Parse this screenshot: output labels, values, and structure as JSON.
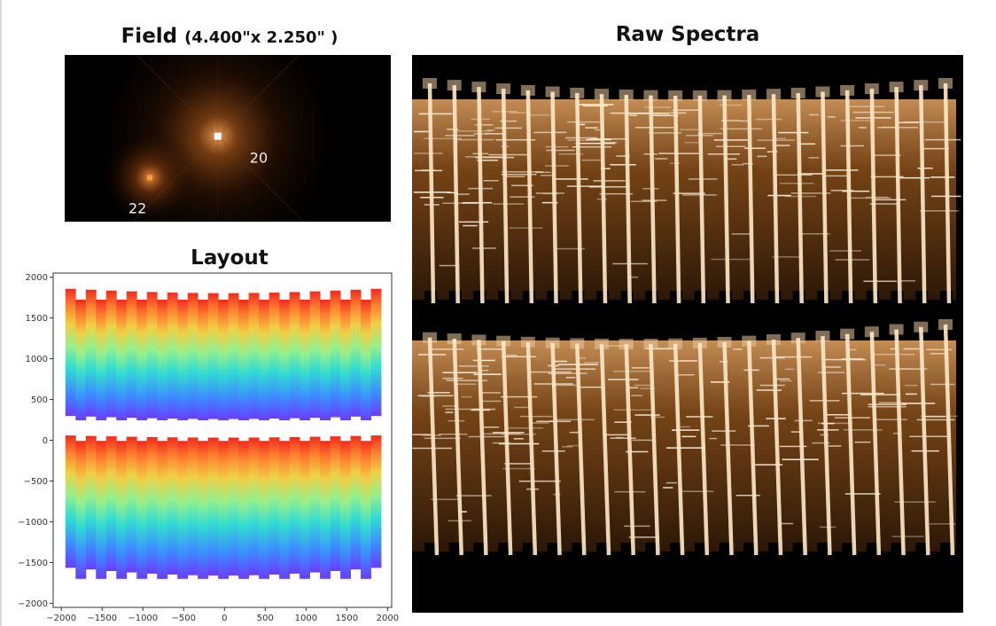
{
  "chart_data": [
    {
      "type": "image",
      "panel": "field",
      "title": "Field",
      "subtitle": "(4.400\"x 2.250\" )",
      "field_size_arcsec": [
        4.4,
        2.25
      ],
      "sources": [
        {
          "label": "20",
          "x": 2.066,
          "y": 1.154
        },
        {
          "label": "22",
          "x": 1.148,
          "y": 0.594
        }
      ],
      "colors": {
        "background": "#000000",
        "glow": "#ff9a3c",
        "core": "#ffffff"
      }
    },
    {
      "type": "scatter",
      "panel": "layout",
      "title": "Layout",
      "xlim": [
        -2100,
        2050
      ],
      "ylim": [
        -2050,
        2050
      ],
      "xticks": [
        -2000,
        -1500,
        -1000,
        -500,
        0,
        500,
        1000,
        1500,
        2000
      ],
      "yticks": [
        -2000,
        -1500,
        -1000,
        -500,
        0,
        500,
        1000,
        1500,
        2000
      ],
      "xtick_labels": [
        "−2000",
        "−1500",
        "−1000",
        "−500",
        "0",
        "500",
        "1000",
        "1500",
        "2000"
      ],
      "ytick_labels": [
        "−2000",
        "−1500",
        "−1000",
        "−500",
        "0",
        "500",
        "1000",
        "1500",
        "2000"
      ],
      "colormap": "rainbow",
      "blocks": [
        {
          "name": "upper",
          "y_bottom_range": [
            220,
            300
          ],
          "y_top_range": [
            1700,
            1860
          ]
        },
        {
          "name": "lower",
          "y_bottom_range": [
            -1760,
            -1560
          ],
          "y_top_range": [
            -20,
            60
          ]
        }
      ],
      "slits_per_block": 31,
      "grid": false
    },
    {
      "type": "image",
      "panel": "raw_spectra",
      "title": "Raw Spectra",
      "tiers": 2,
      "traces_per_tier": 22,
      "colors": {
        "background": "#000000",
        "trace": "#f5d5a8",
        "band": "#c8782a"
      }
    }
  ]
}
